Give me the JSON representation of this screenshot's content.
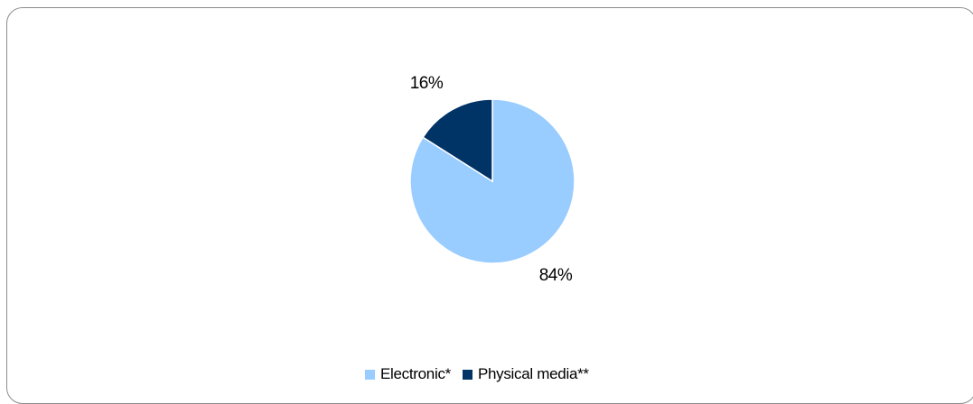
{
  "chart_data": {
    "type": "pie",
    "title": "",
    "slices": [
      {
        "name": "Electronic*",
        "value": 84,
        "label": "84%",
        "color": "#99ccff"
      },
      {
        "name": "Physical media**",
        "value": 16,
        "label": "16%",
        "color": "#003366"
      }
    ],
    "start_angle_deg": 0,
    "direction": "clockwise",
    "legend_position": "bottom"
  }
}
